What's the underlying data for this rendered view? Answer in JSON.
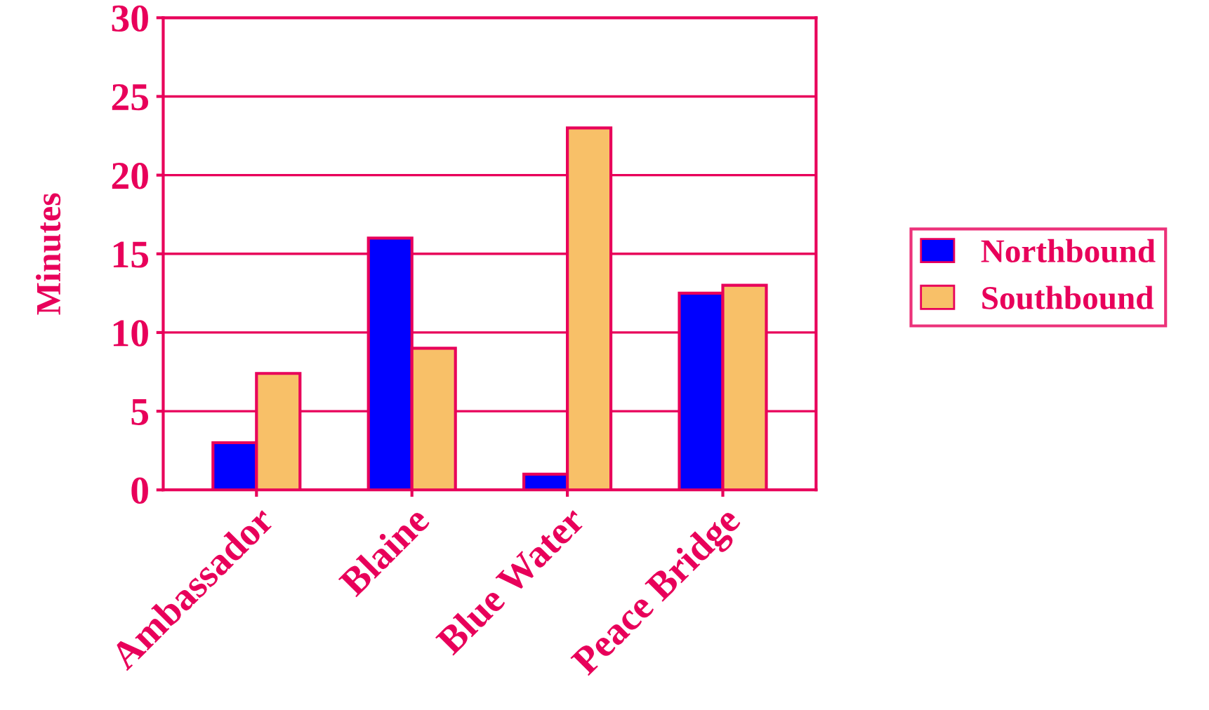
{
  "chart_data": {
    "type": "bar",
    "ylabel": "Minutes",
    "categories": [
      "Ambassador",
      "Blaine",
      "Blue Water",
      "Peace Bridge"
    ],
    "series": [
      {
        "name": "Northbound",
        "color": "#0000ff",
        "values": [
          3,
          16,
          1,
          12.5
        ]
      },
      {
        "name": "Southbound",
        "color": "#f8c068",
        "values": [
          7.4,
          9,
          23,
          13
        ]
      }
    ],
    "ylim": [
      0,
      30
    ],
    "yticks": [
      0,
      5,
      10,
      15,
      20,
      25,
      30
    ],
    "grid": "y",
    "legend": "right"
  }
}
